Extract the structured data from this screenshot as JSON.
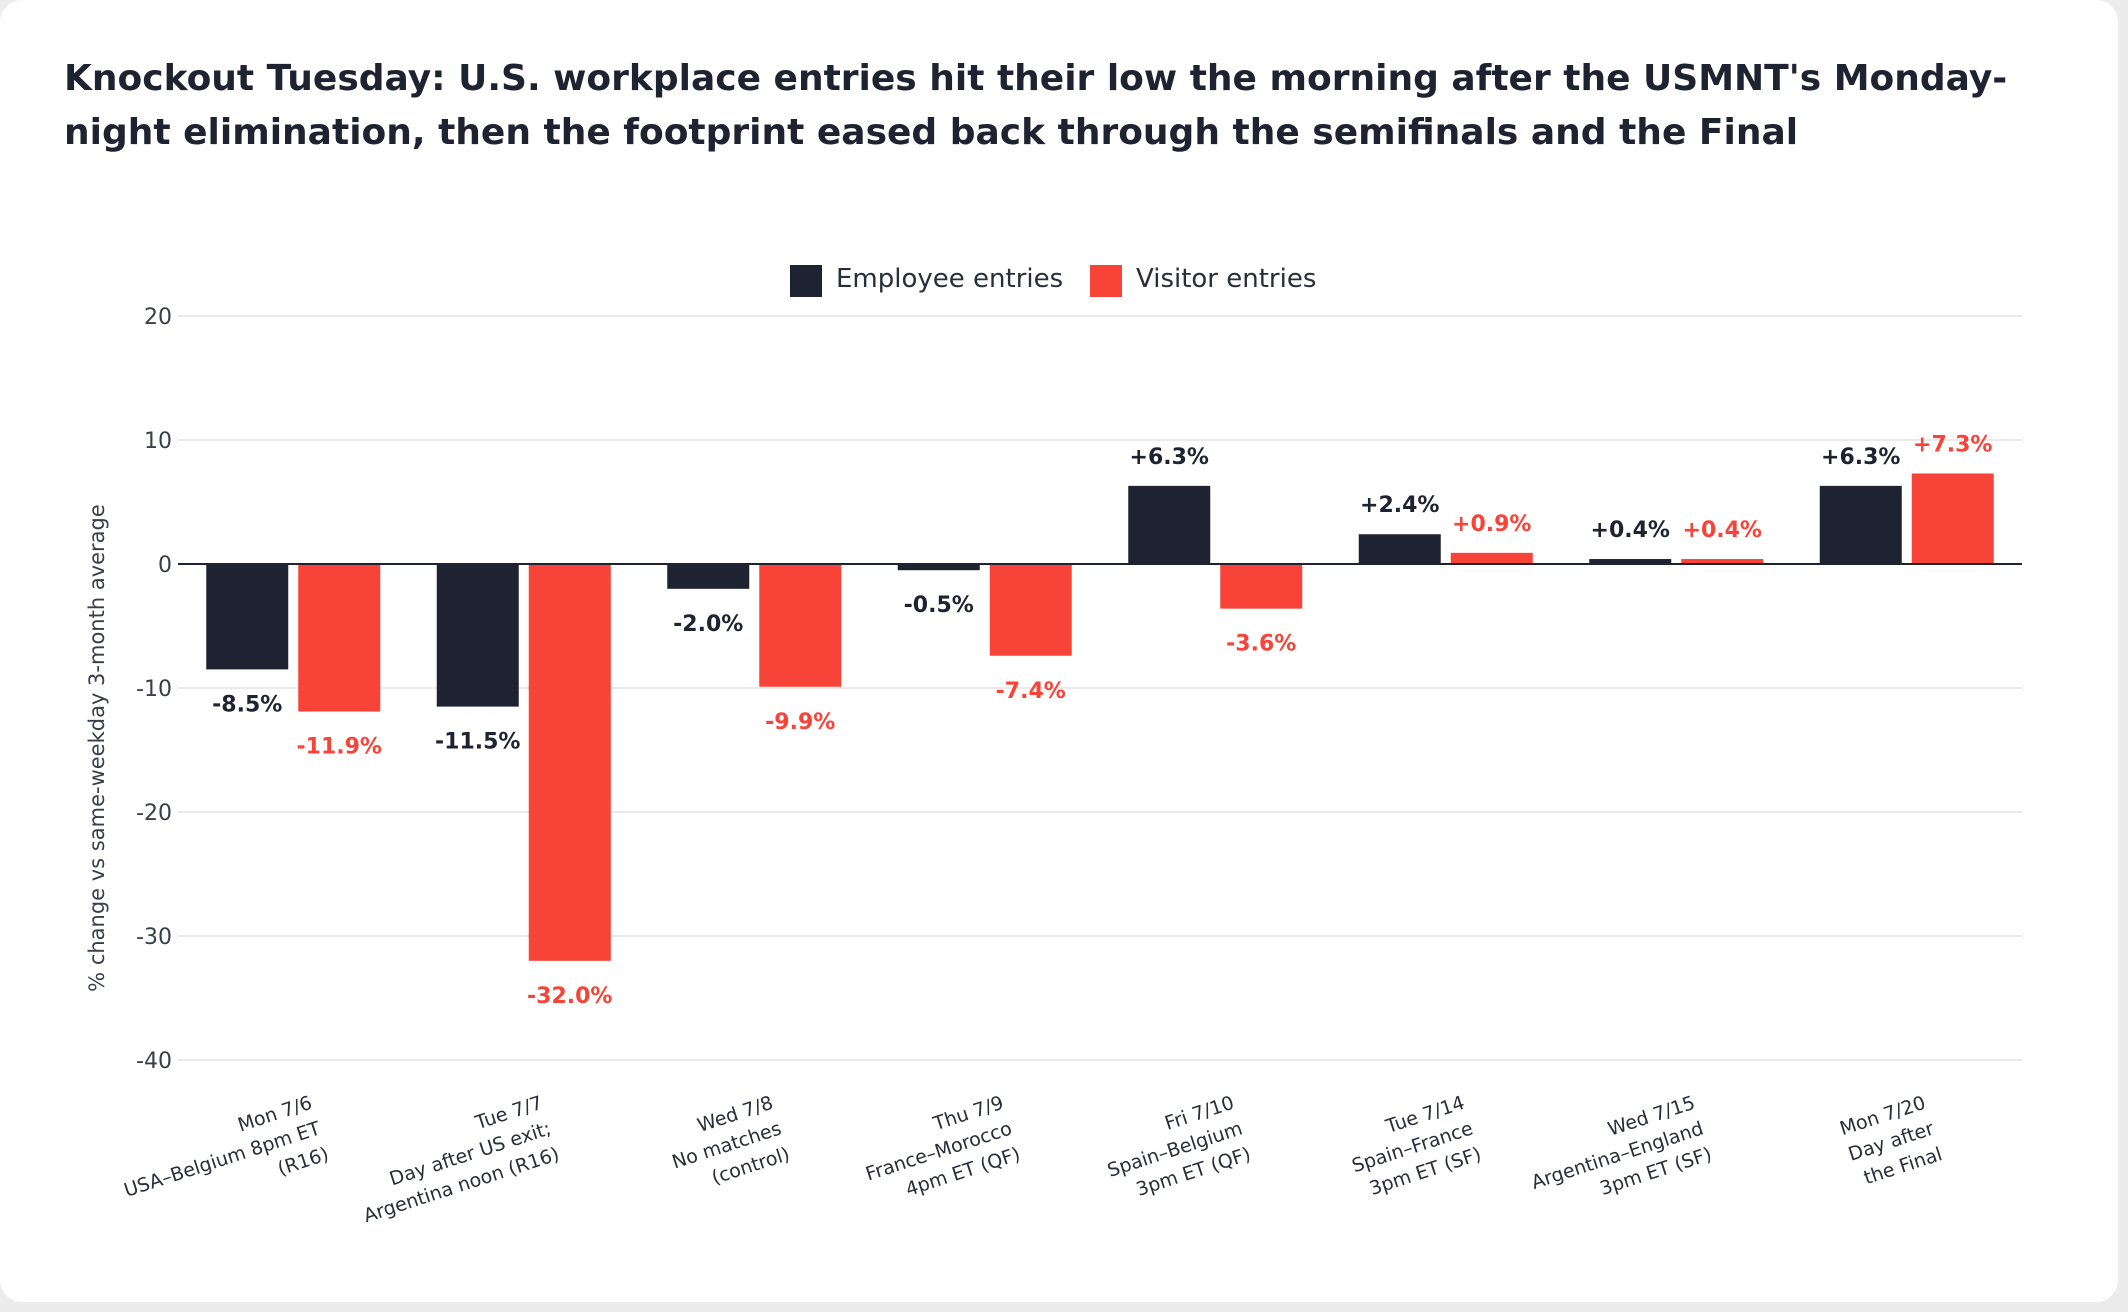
{
  "page": {
    "title": "Knockout Tuesday: U.S. workplace entries hit their low the morning after the USMNT's Monday-night elimination, then the footprint eased back through the semifinals and the Final"
  },
  "chart_data": {
    "type": "bar",
    "title": "Knockout Tuesday: U.S. workplace entries hit their low the morning after the USMNT's Monday-night elimination, then the footprint eased back through the semifinals and the Final",
    "xlabel": "",
    "ylabel": "% change vs same-weekday 3-month average",
    "ylim": [
      -40,
      20
    ],
    "yticks": [
      20,
      10,
      0,
      -10,
      -20,
      -30,
      -40
    ],
    "grid": true,
    "legend_position": "top-center",
    "categories": [
      "Mon 7/6\nUSA–Belgium 8pm ET\n(R16)",
      "Tue 7/7\nDay after US exit;\nArgentina noon (R16)",
      "Wed 7/8\nNo matches\n(control)",
      "Thu 7/9\nFrance–Morocco\n4pm ET (QF)",
      "Fri 7/10\nSpain–Belgium\n3pm ET (QF)",
      "Tue 7/14\nSpain–France\n3pm ET (SF)",
      "Wed 7/15\nArgentina–England\n3pm ET (SF)",
      "Mon 7/20\nDay after\nthe Final"
    ],
    "series": [
      {
        "name": "Employee entries",
        "color": "#1f2230",
        "label_color": "#1f2230",
        "values": [
          -8.5,
          -11.5,
          -2.0,
          -0.5,
          6.3,
          2.4,
          0.4,
          6.3
        ],
        "labels": [
          "-8.5%",
          "-11.5%",
          "-2.0%",
          "-0.5%",
          "+6.3%",
          "+2.4%",
          "+0.4%",
          "+6.3%"
        ]
      },
      {
        "name": "Visitor entries",
        "color": "#f84339",
        "label_color": "#f84339",
        "values": [
          -11.9,
          -32.0,
          -9.9,
          -7.4,
          -3.6,
          0.9,
          0.4,
          7.3
        ],
        "labels": [
          "-11.9%",
          "-32.0%",
          "-9.9%",
          "-7.4%",
          "-3.6%",
          "+0.9%",
          "+0.4%",
          "+7.3%"
        ]
      }
    ]
  }
}
